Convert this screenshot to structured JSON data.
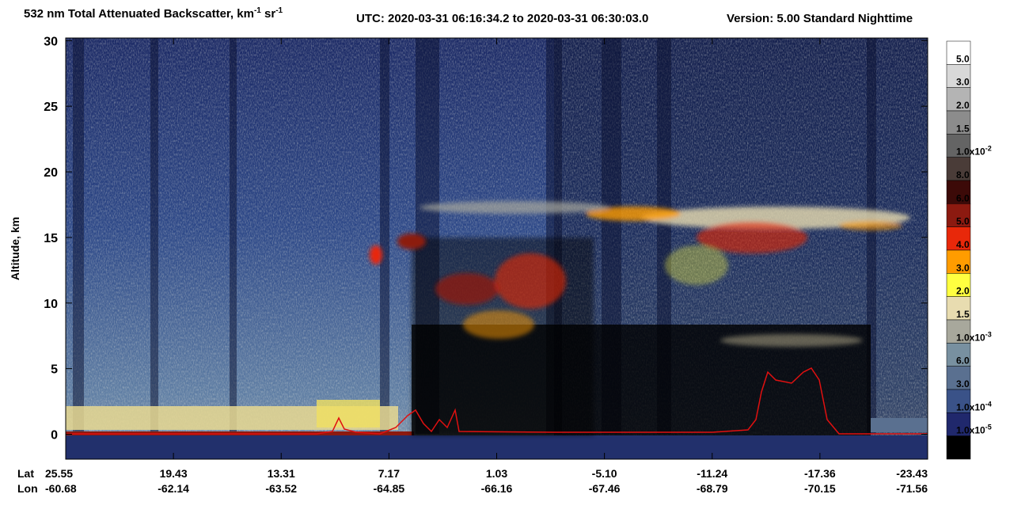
{
  "chart_data": {
    "type": "curtain",
    "title": {
      "text": "532 nm Total Attenuated Backscatter, km",
      "exp1": "-1",
      "unit2": " sr",
      "exp2": "-1",
      "utc": "UTC:  2020-03-31 06:16:34.2  to  2020-03-31 06:30:03.0",
      "version": "Version: 5.00  Standard  Nighttime"
    },
    "ylabel": "Altitude, km",
    "ylim": [
      -1.9,
      30.2
    ],
    "yticks": [
      0,
      5,
      10,
      15,
      20,
      25,
      30
    ],
    "lat_label": "Lat",
    "lon_label": "Lon",
    "lat_ticks": [
      25.55,
      19.43,
      13.31,
      7.17,
      1.03,
      {
        "value": -5.1,
        "label": "-5.10"
      },
      -11.24,
      -17.36,
      -23.43
    ],
    "lon_ticks": [
      -60.68,
      -62.14,
      -63.52,
      -64.85,
      -66.16,
      -67.46,
      -68.79,
      -70.15,
      -71.56
    ],
    "colorbar": {
      "colors": [
        "#ffffff",
        "#d8d8d8",
        "#b4b4b4",
        "#8c8c8c",
        "#646464",
        "#4a3c38",
        "#3c0a08",
        "#8c1a10",
        "#e8280a",
        "#ff9c00",
        "#ffff40",
        "#e8dcb0",
        "#a8a89c",
        "#7890a0",
        "#5a7090",
        "#3a5288",
        "#20286c",
        "#000000"
      ],
      "labels": [
        {
          "text": "5.0"
        },
        {
          "text": "3.0"
        },
        {
          "text": "2.0"
        },
        {
          "text": "1.5"
        },
        {
          "text": "1.0x10",
          "exp": "-2"
        },
        {
          "text": "8.0"
        },
        {
          "text": "6.0"
        },
        {
          "text": "5.0"
        },
        {
          "text": "4.0"
        },
        {
          "text": "3.0"
        },
        {
          "text": "2.0"
        },
        {
          "text": "1.5"
        },
        {
          "text": "1.0x10",
          "exp": "-3"
        },
        {
          "text": "6.0"
        },
        {
          "text": "3.0"
        },
        {
          "text": "1.0x10",
          "exp": "-4"
        },
        {
          "text": "1.0x10",
          "exp": "-5"
        }
      ]
    }
  }
}
